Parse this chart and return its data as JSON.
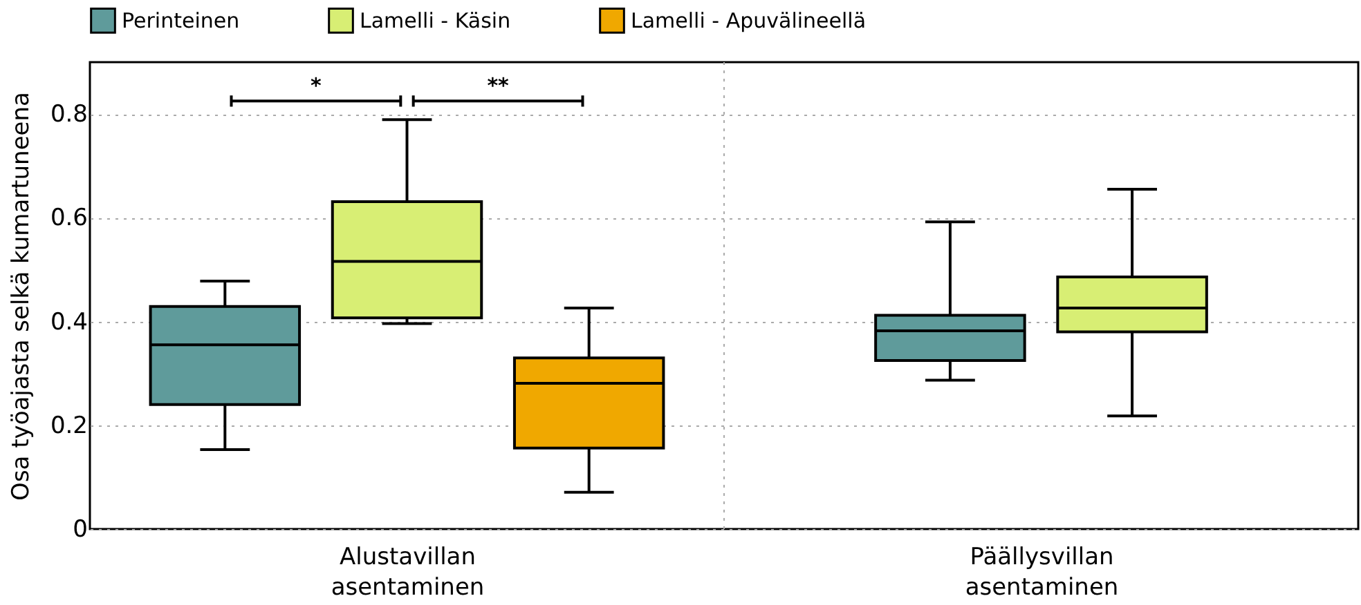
{
  "chart_data": {
    "type": "box",
    "ylabel": "Osa työajasta selkä kumartuneena",
    "categories": [
      "Alustavillan asentaminen",
      "Päällysvillan asentaminen"
    ],
    "series": [
      {
        "name": "Perinteinen",
        "color": "#5f9b9b",
        "boxes": [
          {
            "low": 0.153,
            "q1": 0.24,
            "median": 0.355,
            "q3": 0.429,
            "high": 0.478
          },
          {
            "low": 0.287,
            "q1": 0.325,
            "median": 0.382,
            "q3": 0.412,
            "high": 0.592
          }
        ]
      },
      {
        "name": "Lamelli - Käsin",
        "color": "#d8ee74",
        "boxes": [
          {
            "low": 0.396,
            "q1": 0.407,
            "median": 0.516,
            "q3": 0.631,
            "high": 0.789
          },
          {
            "low": 0.218,
            "q1": 0.38,
            "median": 0.426,
            "q3": 0.486,
            "high": 0.655
          }
        ]
      },
      {
        "name": "Lamelli - Apuvälineellä",
        "color": "#f0a800",
        "boxes": [
          {
            "low": 0.071,
            "q1": 0.156,
            "median": 0.281,
            "q3": 0.33,
            "high": 0.426
          },
          null
        ]
      }
    ],
    "ylim": [
      0,
      0.9
    ],
    "yticks": [
      0,
      0.2,
      0.4,
      0.6,
      0.8
    ],
    "grid": true,
    "legend": "top",
    "annotations": [
      "*",
      "**"
    ]
  }
}
